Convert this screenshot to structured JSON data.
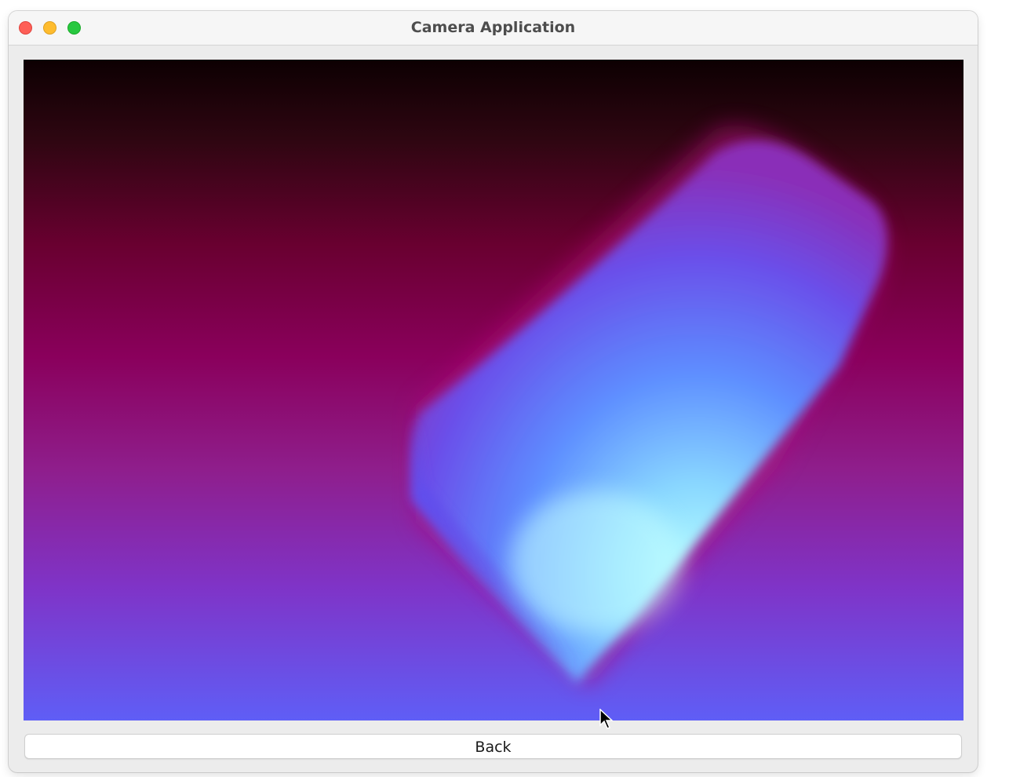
{
  "window": {
    "title": "Camera Application"
  },
  "camera_view": {
    "icon": "camera-feed"
  },
  "controls": {
    "back_label": "Back"
  },
  "colors": {
    "close": "#fe5f57",
    "minimize": "#febc2e",
    "zoom": "#28c840"
  }
}
